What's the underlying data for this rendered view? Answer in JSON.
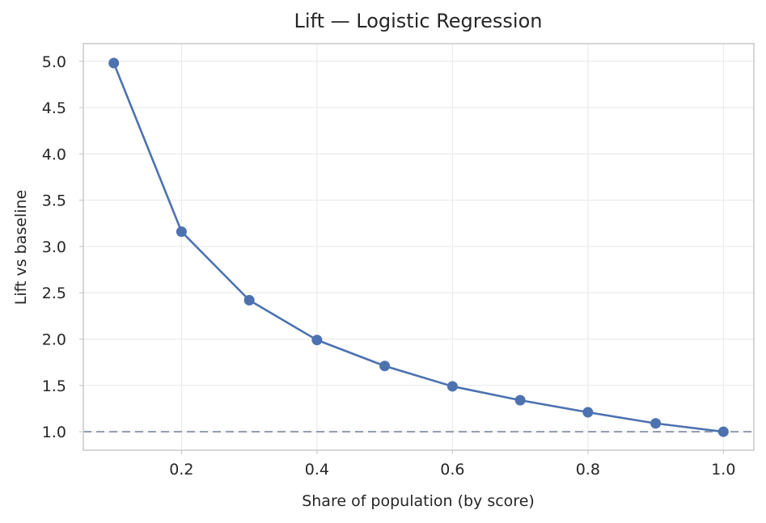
{
  "chart_data": {
    "type": "line",
    "title": "Lift — Logistic Regression",
    "xlabel": "Share of population (by score)",
    "ylabel": "Lift vs baseline",
    "x": [
      0.1,
      0.2,
      0.3,
      0.4,
      0.5,
      0.6,
      0.7,
      0.8,
      0.9,
      1.0
    ],
    "series": [
      {
        "values": [
          4.98,
          3.16,
          2.42,
          1.99,
          1.71,
          1.49,
          1.34,
          1.21,
          1.09,
          1.0
        ],
        "color": "#4c72b0",
        "marker": "circle"
      }
    ],
    "reference_line": {
      "y": 1.0,
      "style": "dashed",
      "color": "#94a0b0"
    },
    "xlim": [
      0.055,
      1.045
    ],
    "ylim": [
      0.8,
      5.19
    ],
    "xticks": [
      0.2,
      0.4,
      0.6,
      0.8,
      1.0
    ],
    "xtick_labels": [
      "0.2",
      "0.4",
      "0.6",
      "0.8",
      "1.0"
    ],
    "yticks": [
      1.0,
      1.5,
      2.0,
      2.5,
      3.0,
      3.5,
      4.0,
      4.5,
      5.0
    ],
    "ytick_labels": [
      "1.0",
      "1.5",
      "2.0",
      "2.5",
      "3.0",
      "3.5",
      "4.0",
      "4.5",
      "5.0"
    ],
    "grid": true
  }
}
